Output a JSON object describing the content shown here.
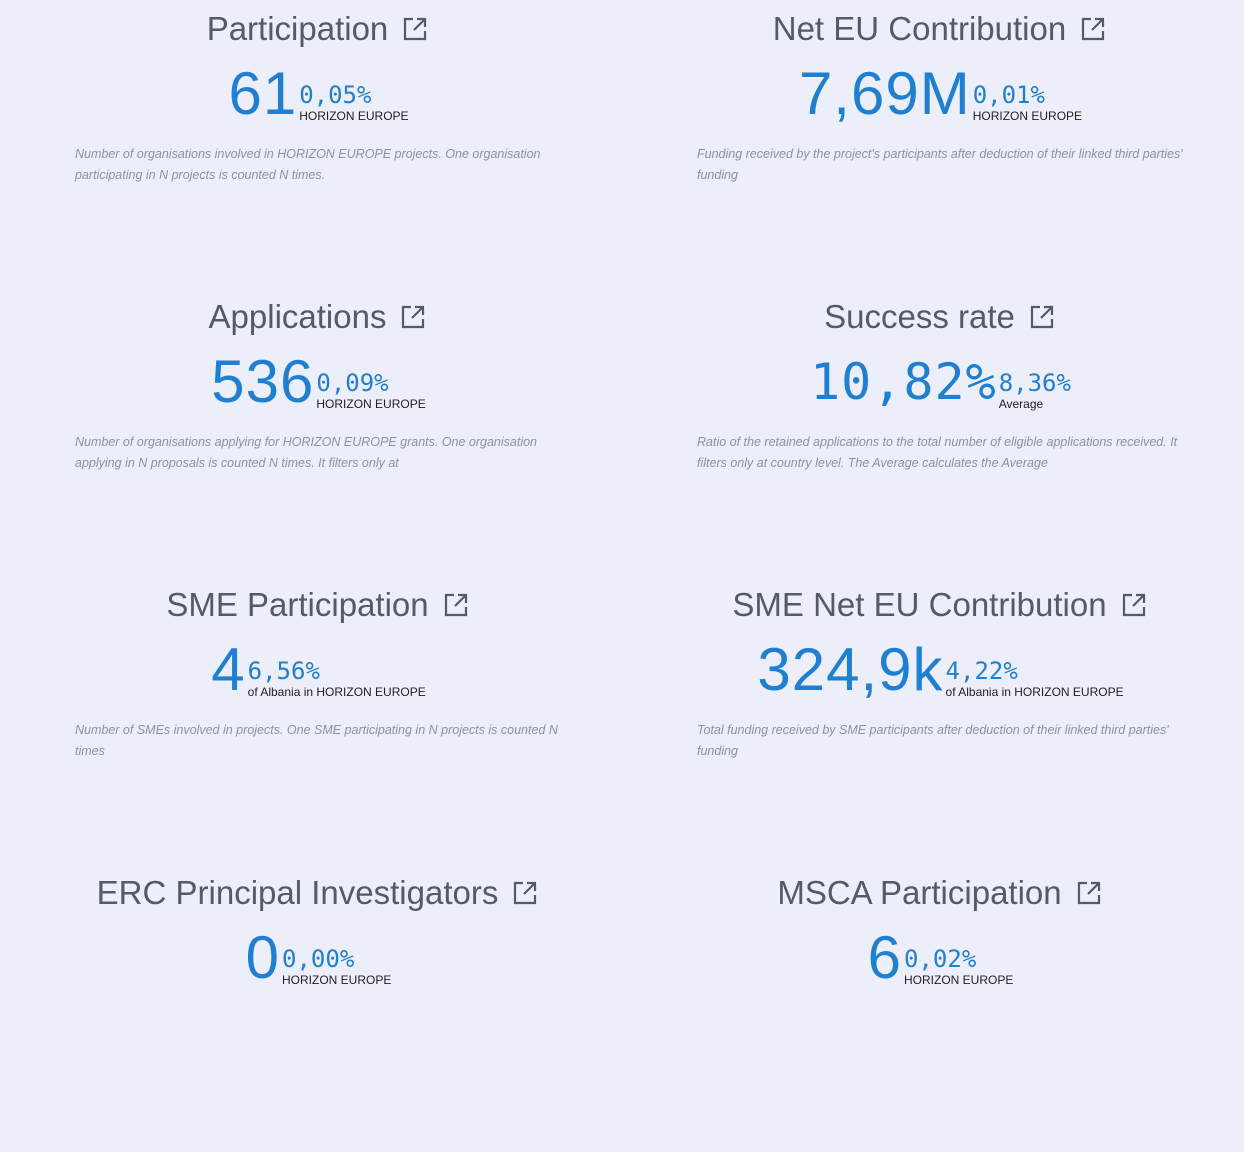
{
  "cards": [
    {
      "title": "Participation",
      "value": "61",
      "percent": "0,05%",
      "scope": "HORIZON EUROPE",
      "description": "Number of organisations involved in HORIZON EUROPE projects. One organisation participating in N projects is counted N times."
    },
    {
      "title": "Net EU Contribution",
      "value": "7,69M",
      "percent": "0,01%",
      "scope": "HORIZON EUROPE",
      "description": "Funding received by the project's participants after deduction of their linked third parties' funding"
    },
    {
      "title": "Applications",
      "value": "536",
      "percent": "0,09%",
      "scope": "HORIZON EUROPE",
      "description": "Number of organisations applying for HORIZON EUROPE grants. One organisation applying in N proposals is counted N times. It filters only at"
    },
    {
      "title": "Success rate",
      "value": "10,82%",
      "percent": "8,36%",
      "scope": "Average",
      "description": "Ratio of the retained applications to the total number of eligible applications received. It filters only at country level. The Average calculates the Average"
    },
    {
      "title": "SME Participation",
      "value": "4",
      "percent": "6,56%",
      "scope": "of Albania in HORIZON EUROPE",
      "description": "Number of SMEs involved in projects. One SME participating in N projects is counted N times"
    },
    {
      "title": "SME Net EU Contribution",
      "value": "324,9k",
      "percent": "4,22%",
      "scope": "of Albania in HORIZON EUROPE",
      "description": "Total funding received by SME participants after deduction of their linked third parties' funding"
    },
    {
      "title": "ERC Principal Investigators",
      "value": "0",
      "percent": "0,00%",
      "scope": "HORIZON EUROPE"
    },
    {
      "title": "MSCA Participation",
      "value": "6",
      "percent": "0,02%",
      "scope": "HORIZON EUROPE"
    }
  ]
}
